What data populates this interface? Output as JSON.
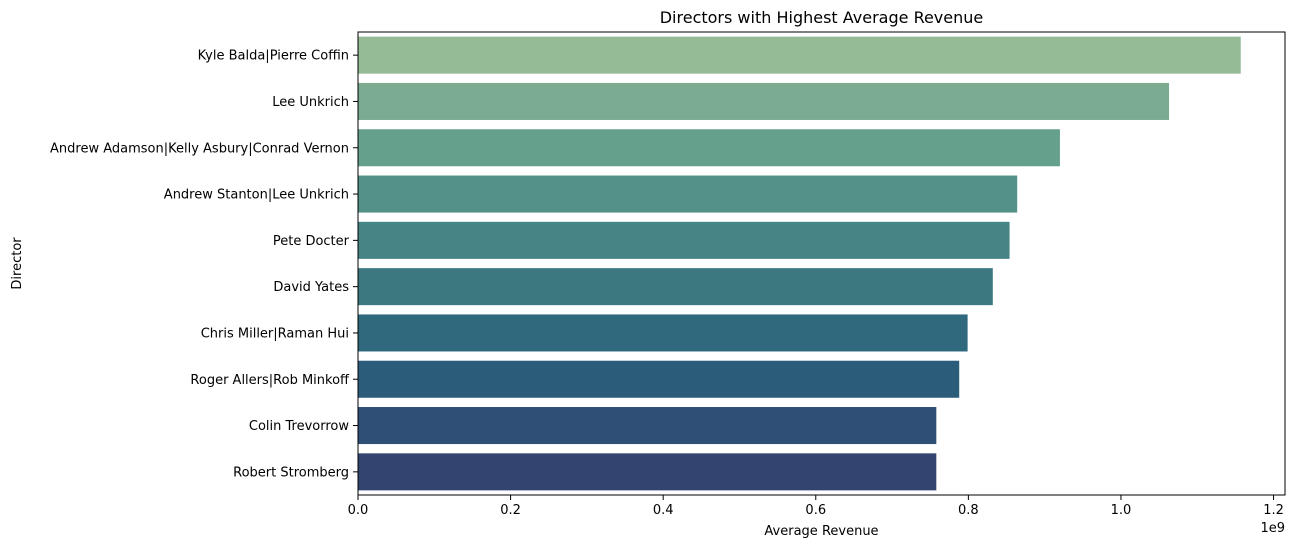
{
  "chart_data": {
    "type": "bar",
    "orientation": "horizontal",
    "title": "Directors with Highest Average Revenue",
    "xlabel": "Average Revenue",
    "ylabel": "Director",
    "x_multiplier_label": "1e9",
    "xlim": [
      0,
      1.2
    ],
    "x_ticks": [
      "0.0",
      "0.2",
      "0.4",
      "0.6",
      "0.8",
      "1.0",
      "1.2"
    ],
    "categories": [
      "Kyle Balda|Pierre Coffin",
      "Lee Unkrich",
      "Andrew Adamson|Kelly Asbury|Conrad Vernon",
      "Andrew Stanton|Lee Unkrich",
      "Pete Docter",
      "David Yates",
      "Chris Miller|Raman Hui",
      "Roger Allers|Rob Minkoff",
      "Colin Trevorrow",
      "Robert Stromberg"
    ],
    "values": [
      1.157,
      1.063,
      0.92,
      0.864,
      0.854,
      0.832,
      0.799,
      0.788,
      0.758,
      0.758
    ],
    "colors": [
      "#94bb95",
      "#7bac91",
      "#65a08d",
      "#549189",
      "#468586",
      "#3b7880",
      "#30697d",
      "#2b5c7a",
      "#2f4f77",
      "#334471"
    ],
    "grid": false,
    "legend": "none"
  }
}
